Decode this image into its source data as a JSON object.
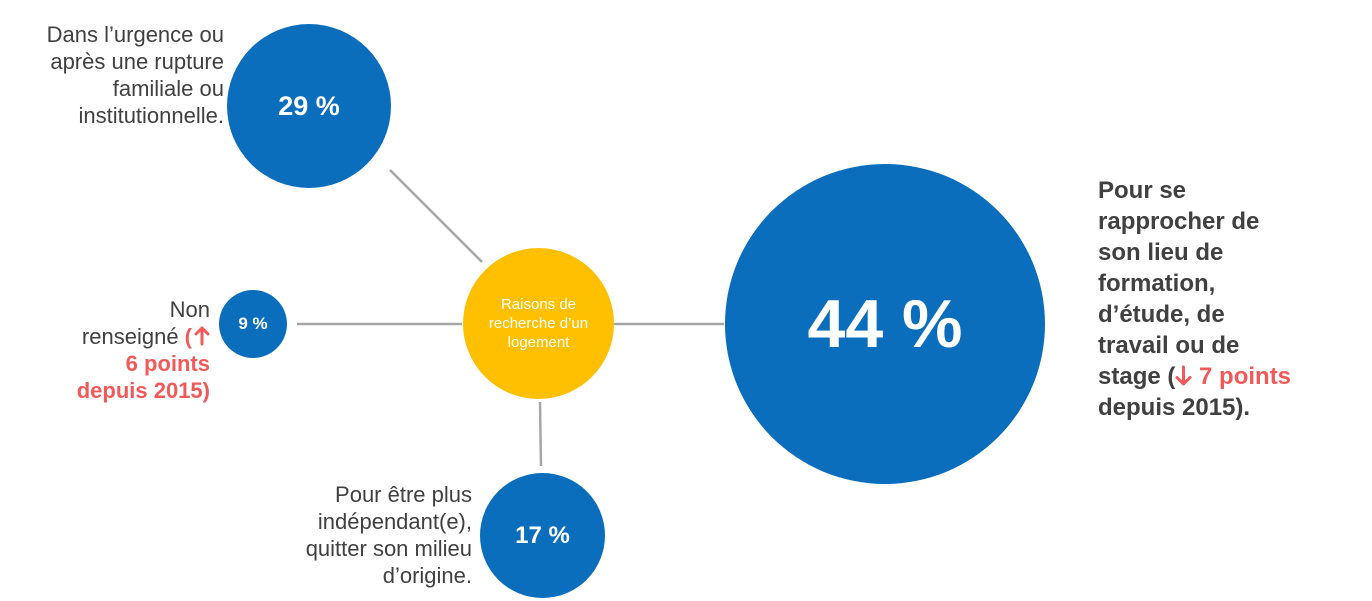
{
  "colors": {
    "bubble": "#0a6ebd",
    "hub": "#fec000",
    "connector": "#a6a6a6",
    "text": "#404040",
    "highlight": "#f25a5a"
  },
  "hub": {
    "line1": "Raisons de",
    "line2": "recherche d’un",
    "line3": "logement"
  },
  "nodes": {
    "urgence": {
      "value": "29 %",
      "label": [
        "Dans l’urgence ou",
        "après une rupture",
        "familiale ou",
        "institutionnelle."
      ]
    },
    "non_renseigne": {
      "value": "9 %",
      "label_line1": "Non",
      "label_line2_prefix": "renseigné ",
      "note_open": "(",
      "arrow_icon": "up-arrow-icon",
      "note_line2": "6 points",
      "note_line3": "depuis 2015)"
    },
    "independant": {
      "value": "17 %",
      "label": [
        "Pour être plus",
        "indépendant(e),",
        "quitter son milieu",
        "d’origine."
      ]
    },
    "formation": {
      "value": "44 %",
      "label": [
        "Pour se",
        "rapprocher de",
        "son lieu de",
        "formation,",
        "d’étude, de",
        "travail ou de"
      ],
      "last_prefix": "stage (",
      "arrow_icon": "down-arrow-icon",
      "note_points": " 7 points",
      "note_line": "depuis 2015)."
    }
  }
}
